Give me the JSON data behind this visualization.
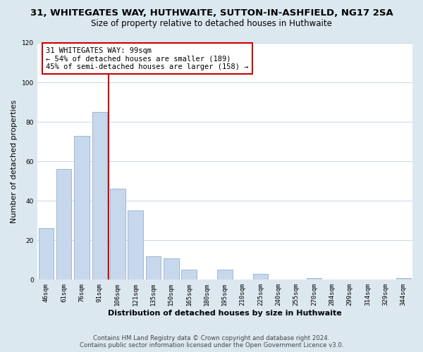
{
  "title": "31, WHITEGATES WAY, HUTHWAITE, SUTTON-IN-ASHFIELD, NG17 2SA",
  "subtitle": "Size of property relative to detached houses in Huthwaite",
  "xlabel": "Distribution of detached houses by size in Huthwaite",
  "ylabel": "Number of detached properties",
  "bar_labels": [
    "46sqm",
    "61sqm",
    "76sqm",
    "91sqm",
    "106sqm",
    "121sqm",
    "135sqm",
    "150sqm",
    "165sqm",
    "180sqm",
    "195sqm",
    "210sqm",
    "225sqm",
    "240sqm",
    "255sqm",
    "270sqm",
    "284sqm",
    "299sqm",
    "314sqm",
    "329sqm",
    "344sqm"
  ],
  "bar_values": [
    26,
    56,
    73,
    85,
    46,
    35,
    12,
    11,
    5,
    0,
    5,
    0,
    3,
    0,
    0,
    1,
    0,
    0,
    0,
    0,
    1
  ],
  "bar_color": "#c8d8ec",
  "bar_edge_color": "#9ab8d4",
  "vline_color": "#cc0000",
  "annotation_line1": "31 WHITEGATES WAY: 99sqm",
  "annotation_line2": "← 54% of detached houses are smaller (189)",
  "annotation_line3": "45% of semi-detached houses are larger (158) →",
  "annotation_box_edge": "#cc0000",
  "annotation_box_face": "#ffffff",
  "ylim": [
    0,
    120
  ],
  "yticks": [
    0,
    20,
    40,
    60,
    80,
    100,
    120
  ],
  "footer_line1": "Contains HM Land Registry data © Crown copyright and database right 2024.",
  "footer_line2": "Contains public sector information licensed under the Open Government Licence v3.0.",
  "bg_color": "#dce8f0",
  "plot_bg_color": "#ffffff",
  "grid_color": "#c8d8e4",
  "title_fontsize": 9.5,
  "subtitle_fontsize": 8.5,
  "axis_label_fontsize": 8,
  "tick_fontsize": 6.5,
  "annotation_fontsize": 7.5,
  "footer_fontsize": 6.2
}
